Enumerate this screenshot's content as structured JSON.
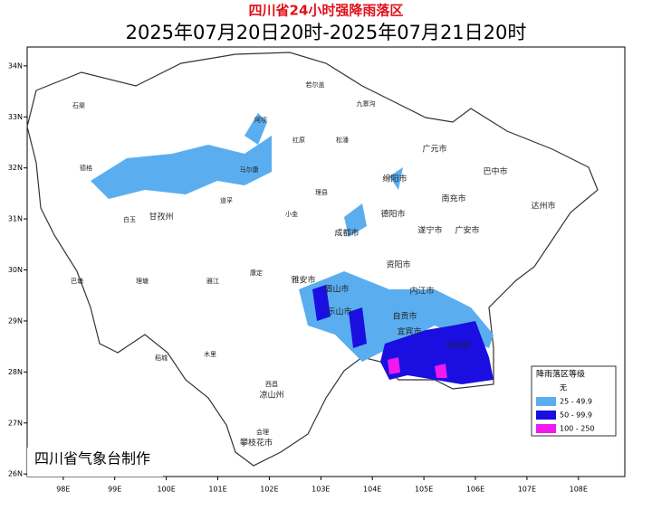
{
  "map": {
    "title": "四川省24小时强降雨落区",
    "subtitle": "2025年07月20日20时-2025年07月21日20时",
    "xlim": [
      97.3,
      108.9
    ],
    "ylim": [
      25.95,
      34.37
    ],
    "xticks": [
      {
        "value": 98,
        "label": "98E"
      },
      {
        "value": 99,
        "label": "99E"
      },
      {
        "value": 100,
        "label": "100E"
      },
      {
        "value": 101,
        "label": "101E"
      },
      {
        "value": 102,
        "label": "102E"
      },
      {
        "value": 103,
        "label": "103E"
      },
      {
        "value": 104,
        "label": "104E"
      },
      {
        "value": 105,
        "label": "105E"
      },
      {
        "value": 106,
        "label": "106E"
      },
      {
        "value": 107,
        "label": "107E"
      },
      {
        "value": 108,
        "label": "108E"
      }
    ],
    "yticks": [
      {
        "value": 34,
        "label": "34N"
      },
      {
        "value": 33,
        "label": "33N"
      },
      {
        "value": 32,
        "label": "32N"
      },
      {
        "value": 31,
        "label": "31N"
      },
      {
        "value": 30,
        "label": "30N"
      },
      {
        "value": 29,
        "label": "29N"
      },
      {
        "value": 28,
        "label": "28N"
      },
      {
        "value": 27,
        "label": "27N"
      },
      {
        "value": 26,
        "label": "26N"
      }
    ],
    "places": [
      "石渠",
      "德格",
      "白玉",
      "甘孜州",
      "阿坝",
      "若尔盖",
      "红原",
      "松潘",
      "九寨沟",
      "马尔康",
      "理县",
      "小金",
      "道孚",
      "康定",
      "巴塘",
      "理塘",
      "雅江",
      "稻城",
      "木里",
      "西昌",
      "凉山州",
      "会理",
      "攀枝花市",
      "雅安市",
      "成都市",
      "眉山市",
      "乐山市",
      "自贡市",
      "宜宾市",
      "泸州市",
      "内江市",
      "资阳市",
      "遂宁市",
      "南充市",
      "广安市",
      "达州市",
      "巴中市",
      "广元市",
      "绵阳市",
      "德阳市"
    ],
    "legend": {
      "title": "降雨落区等级",
      "items": [
        {
          "label": "无",
          "color": "#ffffff"
        },
        {
          "label": "25 - 49.9",
          "color": "#5aaef0"
        },
        {
          "label": "50 - 99.9",
          "color": "#1a0fe0"
        },
        {
          "label": "100 - 250",
          "color": "#f019f0"
        }
      ]
    },
    "credit": "四川省气象台制作"
  }
}
